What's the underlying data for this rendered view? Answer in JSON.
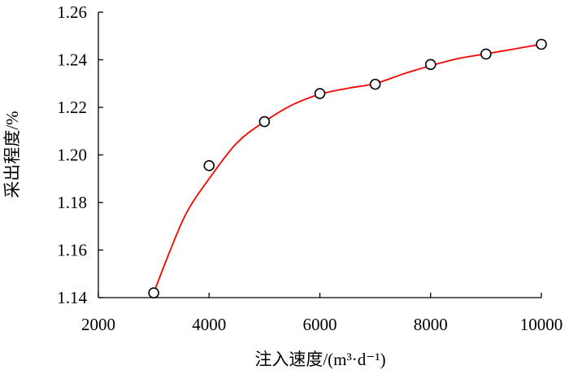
{
  "chart_data": {
    "type": "scatter",
    "xlabel": "注入速度/(m³·d⁻¹)",
    "ylabel": "采出程度/%",
    "xlim": [
      2000,
      10000
    ],
    "ylim": [
      1.14,
      1.26
    ],
    "x_ticks": [
      2000,
      4000,
      6000,
      8000,
      10000
    ],
    "x_tick_labels": [
      "2000",
      "4000",
      "6000",
      "8000",
      "10000"
    ],
    "y_ticks": [
      1.14,
      1.16,
      1.18,
      1.2,
      1.22,
      1.24,
      1.26
    ],
    "y_tick_labels": [
      "1.14",
      "1.16",
      "1.18",
      "1.20",
      "1.22",
      "1.24",
      "1.26"
    ],
    "grid": false,
    "series": [
      {
        "style": "markers",
        "marker": "open-circle",
        "color": "#000000",
        "x": [
          3000,
          4000,
          5000,
          6000,
          7000,
          8000,
          9000,
          10000
        ],
        "y": [
          1.142,
          1.1955,
          1.214,
          1.2258,
          1.2297,
          1.238,
          1.2424,
          1.2465
        ]
      },
      {
        "style": "smooth-line",
        "color": "#ff0000",
        "x": [
          3000,
          3300,
          3600,
          4000,
          4500,
          5000,
          5500,
          6000,
          6500,
          7000,
          7500,
          8000,
          8500,
          9000,
          9500,
          10000
        ],
        "y": [
          1.142,
          1.16,
          1.176,
          1.19,
          1.205,
          1.214,
          1.221,
          1.2255,
          1.228,
          1.23,
          1.234,
          1.2375,
          1.2405,
          1.2425,
          1.2445,
          1.2465
        ]
      }
    ]
  }
}
